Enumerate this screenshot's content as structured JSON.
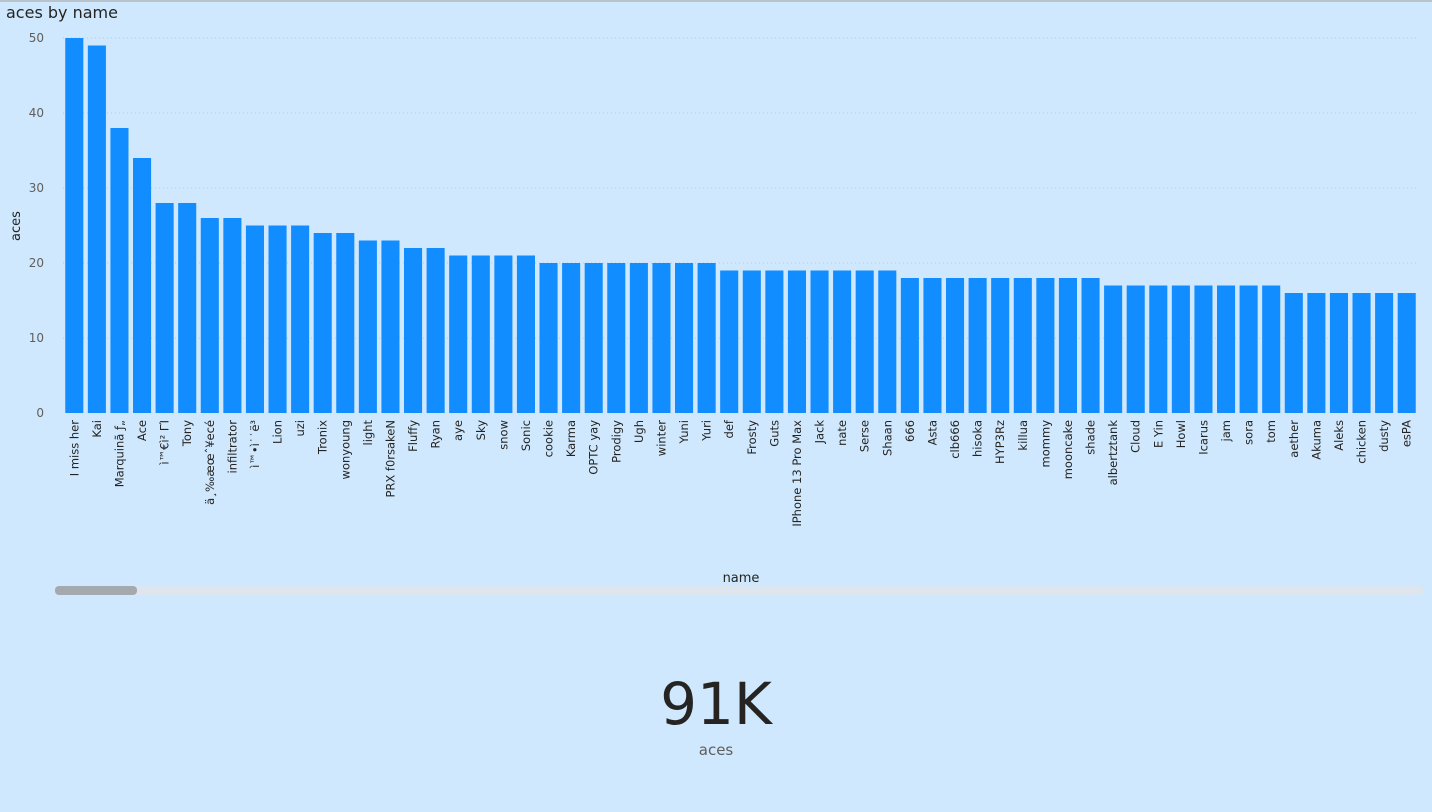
{
  "chart_data": {
    "type": "bar",
    "title": "aces by name",
    "xlabel": "name",
    "ylabel": "aces",
    "ylim": [
      0,
      50
    ],
    "yticks": [
      0,
      10,
      20,
      30,
      40,
      50
    ],
    "grid": true,
    "bar_color": "#118dff",
    "categories": [
      "I miss her",
      "Kai",
      "Marquinã ƒ„",
      "Ace",
      "ì™€ì² ΓΊ",
      "Tony",
      "ä¸‰æœˆ¥ecé",
      "infiltrator",
      "ì™•ì˙˙ë³",
      "Lion",
      "uzi",
      "Tronix",
      "wonyoung",
      "light",
      "PRX f0rsakeN",
      "Fluffy",
      "Ryan",
      "aye",
      "Sky",
      "snow",
      "Sonic",
      "cookie",
      "Karma",
      "OPTC yay",
      "Prodigy",
      "Ugh",
      "winter",
      "Yuni",
      "Yuri",
      "def",
      "Frosty",
      "Guts",
      "IPhone 13 Pro Max",
      "Jack",
      "nate",
      "Serse",
      "Shaan",
      "666",
      "Asta",
      "clb666",
      "hisoka",
      "HYP3Rz",
      "killua",
      "mommy",
      "mooncake",
      "shade",
      "albertztank",
      "Cloud",
      "E Yin",
      "Howl",
      "Icarus",
      "jam",
      "sora",
      "tom",
      "aether",
      "Akuma",
      "Aleks",
      "chicken",
      "dusty",
      "esPA"
    ],
    "values": [
      50,
      49,
      38,
      34,
      28,
      28,
      26,
      26,
      25,
      25,
      25,
      24,
      24,
      23,
      23,
      22,
      22,
      21,
      21,
      21,
      21,
      20,
      20,
      20,
      20,
      20,
      20,
      20,
      20,
      19,
      19,
      19,
      19,
      19,
      19,
      19,
      19,
      18,
      18,
      18,
      18,
      18,
      18,
      18,
      18,
      18,
      17,
      17,
      17,
      17,
      17,
      17,
      17,
      17,
      16,
      16,
      16,
      16,
      16,
      16
    ]
  },
  "card": {
    "value": "91K",
    "label": "aces"
  }
}
